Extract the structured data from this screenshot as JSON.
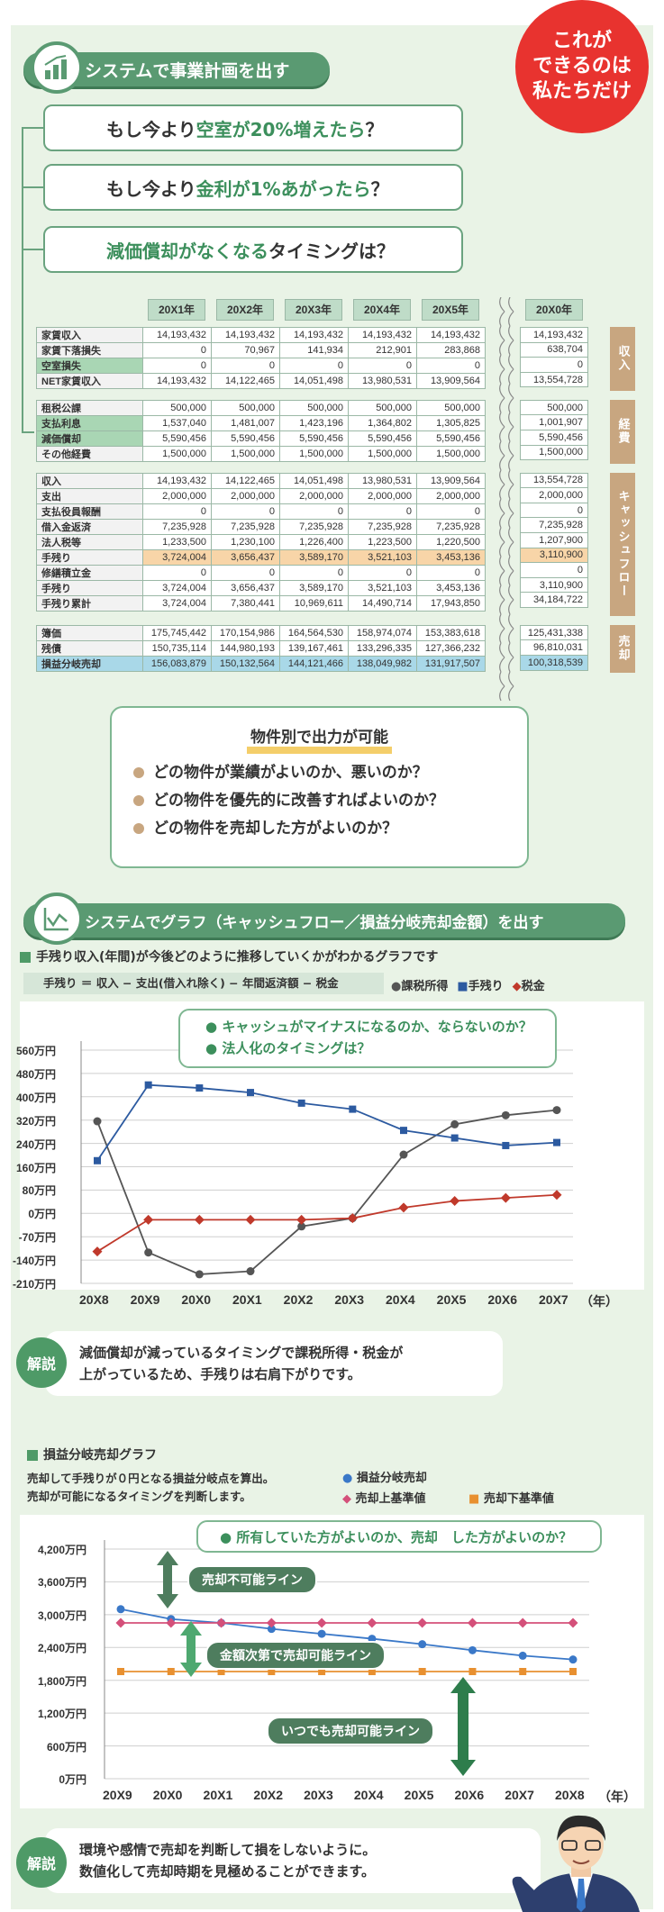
{
  "badge": {
    "line1": "これが",
    "line2": "できるのは",
    "line3": "私たちだけ"
  },
  "sec1": {
    "title": "システムで事業計画を出す"
  },
  "questions": [
    {
      "pre": "もし今より",
      "hl": "空室が20%増えたら",
      "post": "？"
    },
    {
      "pre": "もし今より",
      "hl": "金利が1%あがったら",
      "post": "？"
    },
    {
      "pre": "",
      "hl": "減価償却がなくなる",
      "post": "タイミングは？"
    }
  ],
  "table": {
    "years": [
      "20X1年",
      "20X2年",
      "20X3年",
      "20X4年",
      "20X5年"
    ],
    "far_year": "20X0年",
    "groups": [
      {
        "side": "収入",
        "rows": [
          {
            "label": "家賃収入",
            "v": [
              "14,193,432",
              "14,193,432",
              "14,193,432",
              "14,193,432",
              "14,193,432"
            ],
            "f": "14,193,432"
          },
          {
            "label": "家賃下落損失",
            "v": [
              "0",
              "70,967",
              "141,934",
              "212,901",
              "283,868"
            ],
            "f": "638,704"
          },
          {
            "label": "空室損失",
            "v": [
              "0",
              "0",
              "0",
              "0",
              "0"
            ],
            "f": "0",
            "hl": true
          },
          {
            "label": "NET家賃収入",
            "v": [
              "14,193,432",
              "14,122,465",
              "14,051,498",
              "13,980,531",
              "13,909,564"
            ],
            "f": "13,554,728"
          }
        ]
      },
      {
        "side": "経費",
        "rows": [
          {
            "label": "租税公課",
            "v": [
              "500,000",
              "500,000",
              "500,000",
              "500,000",
              "500,000"
            ],
            "f": "500,000"
          },
          {
            "label": "支払利息",
            "v": [
              "1,537,040",
              "1,481,007",
              "1,423,196",
              "1,364,802",
              "1,305,825"
            ],
            "f": "1,001,907",
            "hl": true
          },
          {
            "label": "減価償却",
            "v": [
              "5,590,456",
              "5,590,456",
              "5,590,456",
              "5,590,456",
              "5,590,456"
            ],
            "f": "5,590,456",
            "hl": true
          },
          {
            "label": "その他経費",
            "v": [
              "1,500,000",
              "1,500,000",
              "1,500,000",
              "1,500,000",
              "1,500,000"
            ],
            "f": "1,500,000"
          }
        ]
      },
      {
        "side": "キャッシュフロー",
        "rows": [
          {
            "label": "収入",
            "v": [
              "14,193,432",
              "14,122,465",
              "14,051,498",
              "13,980,531",
              "13,909,564"
            ],
            "f": "13,554,728"
          },
          {
            "label": "支出",
            "v": [
              "2,000,000",
              "2,000,000",
              "2,000,000",
              "2,000,000",
              "2,000,000"
            ],
            "f": "2,000,000"
          },
          {
            "label": "支払役員報酬",
            "v": [
              "0",
              "0",
              "0",
              "0",
              "0"
            ],
            "f": "0"
          },
          {
            "label": "借入金返済",
            "v": [
              "7,235,928",
              "7,235,928",
              "7,235,928",
              "7,235,928",
              "7,235,928"
            ],
            "f": "7,235,928"
          },
          {
            "label": "法人税等",
            "v": [
              "1,233,500",
              "1,230,100",
              "1,226,400",
              "1,223,500",
              "1,220,500"
            ],
            "f": "1,207,900"
          },
          {
            "label": "手残り",
            "v": [
              "3,724,004",
              "3,656,437",
              "3,589,170",
              "3,521,103",
              "3,453,136"
            ],
            "f": "3,110,900",
            "orange": true
          },
          {
            "label": "修繕積立金",
            "v": [
              "0",
              "0",
              "0",
              "0",
              "0"
            ],
            "f": "0"
          },
          {
            "label": "手残り",
            "v": [
              "3,724,004",
              "3,656,437",
              "3,589,170",
              "3,521,103",
              "3,453,136"
            ],
            "f": "3,110,900"
          },
          {
            "label": "手残り累計",
            "v": [
              "3,724,004",
              "7,380,441",
              "10,969,611",
              "14,490,714",
              "17,943,850"
            ],
            "f": "34,184,722"
          }
        ]
      },
      {
        "side": "売却",
        "rows": [
          {
            "label": "簿価",
            "v": [
              "175,745,442",
              "170,154,986",
              "164,564,530",
              "158,974,074",
              "153,383,618"
            ],
            "f": "125,431,338"
          },
          {
            "label": "残債",
            "v": [
              "150,735,114",
              "144,980,193",
              "139,167,461",
              "133,296,335",
              "127,366,232"
            ],
            "f": "96,810,031"
          },
          {
            "label": "損益分岐売却",
            "v": [
              "156,083,879",
              "150,132,564",
              "144,121,466",
              "138,049,982",
              "131,917,507"
            ],
            "f": "100,318,539",
            "blue": true
          }
        ]
      }
    ]
  },
  "box1": {
    "title": "物件別で出力が可能",
    "items": [
      "どの物件が業績がよいのか、悪いのか？",
      "どの物件を優先的に改善すればよいのか？",
      "どの物件を売却した方がよいのか？"
    ]
  },
  "sec2": {
    "title": "システムでグラフ（キャッシュフロー／損益分岐売却金額）を出す"
  },
  "chart1": {
    "heading": "手残り収入(年間)が今後どのように推移していくかがわかるグラフです",
    "formula": "手残り ＝ 収入 − 支出(借入れ除く) − 年間返済額 − 税金",
    "tip1": "キャッシュがマイナスになるのか、ならないのか？",
    "tip2": "法人化のタイミングは？",
    "xunit": "（年）"
  },
  "chart_data": [
    {
      "type": "line",
      "categories": [
        "20X8",
        "20X9",
        "20X0",
        "20X1",
        "20X2",
        "20X3",
        "20X4",
        "20X5",
        "20X6",
        "20X7"
      ],
      "ytick_labels": [
        "560万円",
        "480万円",
        "400万円",
        "320万円",
        "240万円",
        "160万円",
        "80万円",
        "0万円",
        "-70万円",
        "-140万円",
        "-210万円"
      ],
      "ylim": [
        -210,
        560
      ],
      "series": [
        {
          "name": "課税所得",
          "color": "#555555",
          "marker": "circle",
          "values": [
            325,
            -108,
            -180,
            -170,
            -22,
            5,
            215,
            315,
            345,
            362
          ]
        },
        {
          "name": "手残り",
          "color": "#2c5aa0",
          "marker": "square",
          "values": [
            195,
            445,
            435,
            420,
            385,
            365,
            295,
            270,
            245,
            255
          ]
        },
        {
          "name": "税金",
          "color": "#c0392b",
          "marker": "diamond",
          "values": [
            -105,
            0,
            0,
            0,
            0,
            5,
            40,
            62,
            72,
            82
          ]
        }
      ]
    },
    {
      "type": "line",
      "categories": [
        "20X9",
        "20X0",
        "20X1",
        "20X2",
        "20X3",
        "20X4",
        "20X5",
        "20X6",
        "20X7",
        "20X8"
      ],
      "ytick_labels": [
        "4,200万円",
        "3,600万円",
        "3,000万円",
        "2,400万円",
        "1,800万円",
        "1,200万円",
        "600万円",
        "0万円"
      ],
      "ylim": [
        0,
        4200
      ],
      "series": [
        {
          "name": "損益分岐売却",
          "color": "#3a78c8",
          "marker": "circle",
          "values": [
            3100,
            2920,
            2850,
            2740,
            2650,
            2560,
            2460,
            2350,
            2250,
            2180
          ]
        },
        {
          "name": "売却上基準値",
          "color": "#d4507a",
          "marker": "diamond",
          "values": [
            2850,
            2850,
            2850,
            2850,
            2850,
            2850,
            2850,
            2850,
            2850,
            2850
          ]
        },
        {
          "name": "売却下基準値",
          "color": "#e89030",
          "marker": "square",
          "values": [
            1960,
            1960,
            1960,
            1960,
            1960,
            1960,
            1960,
            1960,
            1960,
            1960
          ]
        }
      ]
    }
  ],
  "kaisetsu1": {
    "badge": "解説",
    "line1": "減価償却が減っているタイミングで課税所得・税金が",
    "line2": "上がっているため、手残りは右肩下がりです。"
  },
  "chart2": {
    "heading": "損益分岐売却グラフ",
    "desc1": "売却して手残りが０円となる損益分岐点を算出。",
    "desc2": "売却が可能になるタイミングを判断します。",
    "tip": "所有していた方がよいのか、売却　した方がよいのか？",
    "lines": [
      "売却不可能ライン",
      "金額次第で売却可能ライン",
      "いつでも売却可能ライン"
    ],
    "xunit": "（年）"
  },
  "kaisetsu2": {
    "badge": "解説",
    "line1": "環境や感情で売却を判断して損をしないように。",
    "line2": "数値化して売却時期を見極めることができます。"
  }
}
